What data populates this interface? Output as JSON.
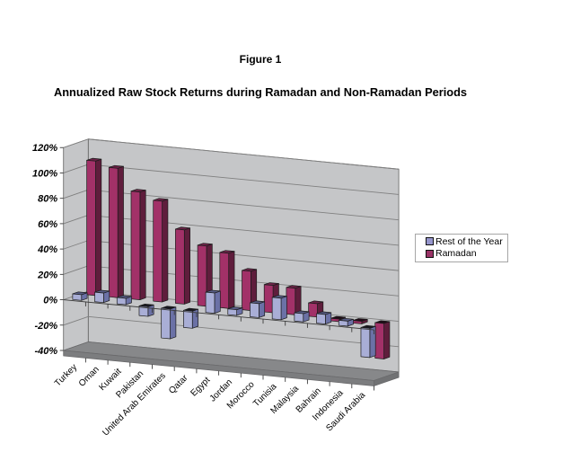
{
  "page": {
    "figure_label": "Figure 1",
    "figure_title": "Annualized Raw Stock Returns during Ramadan and Non-Ramadan Periods"
  },
  "legend": {
    "entries": [
      {
        "label": "Rest of the Year",
        "color": "#9696cd"
      },
      {
        "label": "Ramadan",
        "color": "#993366"
      }
    ]
  },
  "chart_data": {
    "type": "bar",
    "style": "3d-column",
    "title": "Annualized Raw Stock Returns during Ramadan and Non-Ramadan Periods",
    "xlabel": "",
    "ylabel": "",
    "ylim": [
      -40,
      120
    ],
    "ytick_step": 20,
    "ytick_format": "percent",
    "grid": true,
    "legend_position": "right",
    "categories": [
      "Turkey",
      "Oman",
      "Kuwait",
      "Pakistan",
      "United Arab Emirates",
      "Qatar",
      "Egypt",
      "Jordan",
      "Morocco",
      "Tunisia",
      "Malaysia",
      "Bahrain",
      "Indonesia",
      "Saudi Arabia"
    ],
    "series": [
      {
        "name": "Rest of the Year",
        "color": "#9999cc",
        "front": "#a9aed6",
        "side": "#6b71a6",
        "top": "#585d86",
        "top_negative": "#17171f",
        "values": [
          4.5,
          7.5,
          5,
          -7.5,
          -23.5,
          -13.5,
          16,
          4.5,
          11,
          17,
          6.5,
          7.5,
          4,
          -23
        ]
      },
      {
        "name": "Ramadan",
        "color": "#993366",
        "front": "#a23168",
        "side": "#5f1d3c",
        "top": "#6b2347",
        "top_negative": "#200b17",
        "values": [
          106,
          102,
          85,
          79.5,
          58.5,
          47.5,
          43.5,
          31,
          21.5,
          21,
          10.5,
          -2,
          -2,
          -28
        ]
      }
    ],
    "colors": {
      "wall": "#c5c6c8",
      "floor": "#87888a",
      "gridline": "#808080",
      "axis_text": "#000000"
    }
  }
}
